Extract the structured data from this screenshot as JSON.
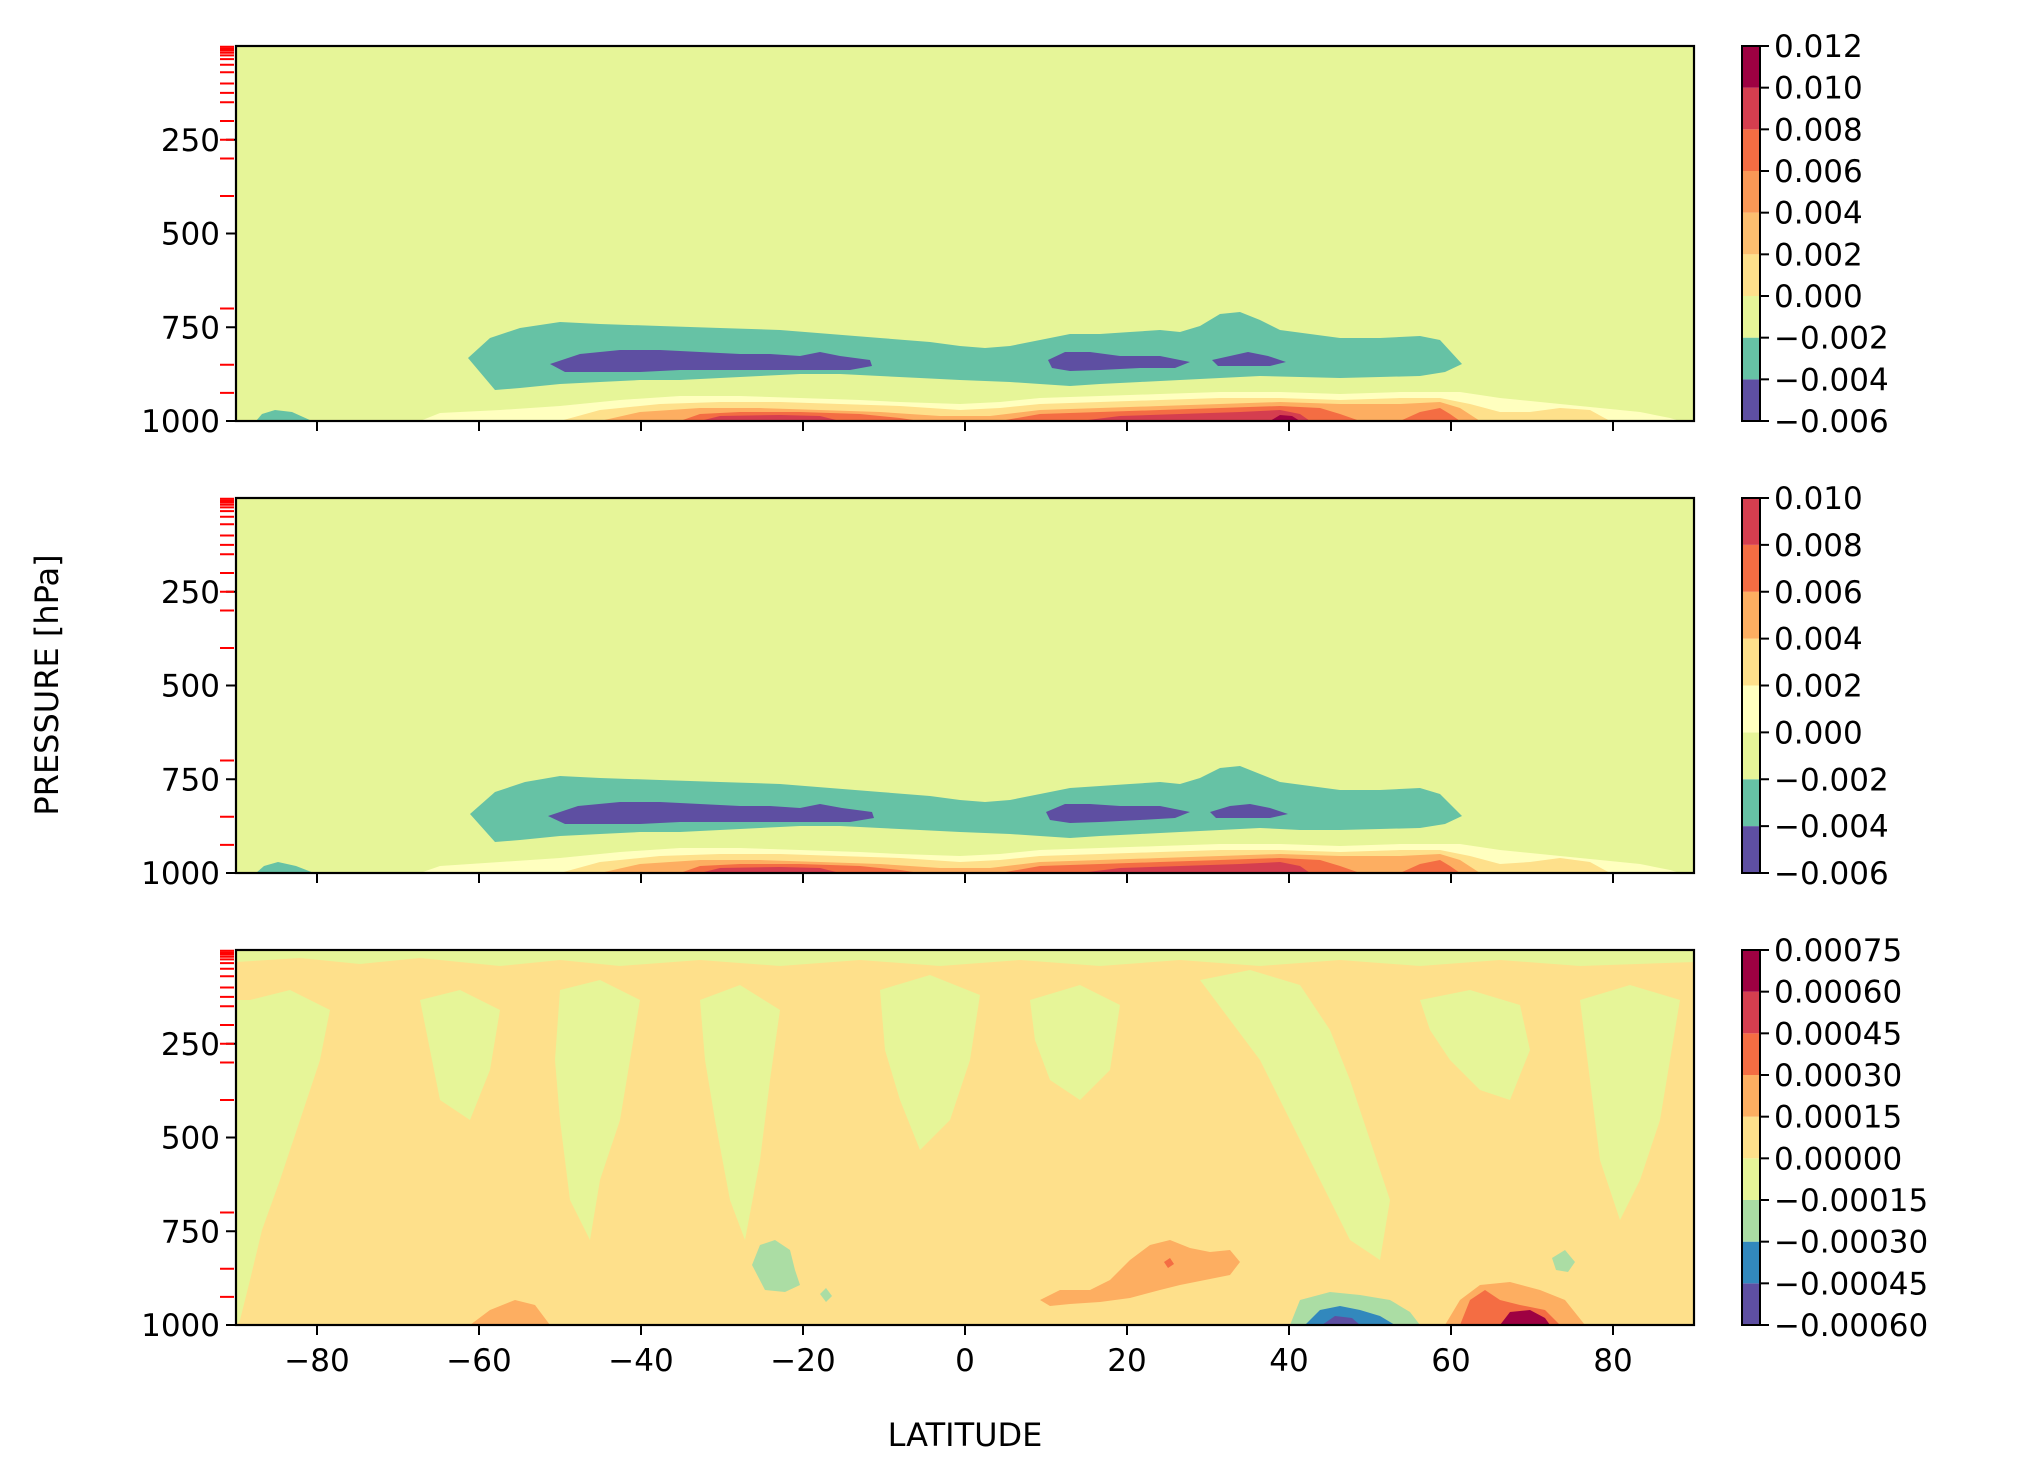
{
  "figure": {
    "ylabel": "PRESSURE [hPa]",
    "xlabel": "LATITUDE",
    "colors": {
      "spectral": [
        "#5e4fa2",
        "#3288bd",
        "#66c2a5",
        "#abdda4",
        "#e6f598",
        "#ffffbf",
        "#fee08b",
        "#fdae61",
        "#f46d43",
        "#d53e4f",
        "#9e0142"
      ],
      "pressure_level_mark": "#ff0000"
    }
  },
  "chart_data": [
    {
      "type": "contourf",
      "name": "top",
      "xlim": [
        -90,
        90
      ],
      "ylim": [
        1000,
        0
      ],
      "x_ticks": [
        -80,
        -60,
        -40,
        -20,
        0,
        20,
        40,
        60,
        80
      ],
      "x_tick_labels": [
        "",
        "",
        "",
        "",
        "",
        "",
        "",
        "",
        ""
      ],
      "y_ticks": [
        250,
        500,
        750,
        1000
      ],
      "y_tick_labels": [
        "250",
        "500",
        "750",
        "1000"
      ],
      "pressure_levels": [
        2,
        7,
        12,
        18,
        25,
        35,
        50,
        70,
        100,
        125,
        150,
        200,
        250,
        300,
        400,
        700,
        850,
        925
      ],
      "background_band": "-0.002 to 0.000",
      "colorbar": {
        "levels": [
          -0.006,
          -0.004,
          -0.002,
          0.0,
          0.002,
          0.004,
          0.006,
          0.008,
          0.01,
          0.012
        ],
        "tick_labels": [
          "0.012",
          "0.010",
          "0.008",
          "0.006",
          "0.004",
          "0.002",
          "0.000",
          "−0.002",
          "−0.004",
          "−0.006"
        ],
        "band_colors": [
          "#5e4fa2",
          "#66c2a5",
          "#e6f598",
          "#fee08b",
          "#fdbe6f",
          "#fa9856",
          "#f46d43",
          "#d53e4f",
          "#9e0142"
        ]
      }
    },
    {
      "type": "contourf",
      "name": "middle",
      "xlim": [
        -90,
        90
      ],
      "ylim": [
        1000,
        0
      ],
      "x_ticks": [
        -80,
        -60,
        -40,
        -20,
        0,
        20,
        40,
        60,
        80
      ],
      "x_tick_labels": [
        "",
        "",
        "",
        "",
        "",
        "",
        "",
        "",
        ""
      ],
      "y_ticks": [
        250,
        500,
        750,
        1000
      ],
      "y_tick_labels": [
        "250",
        "500",
        "750",
        "1000"
      ],
      "pressure_levels": [
        2,
        7,
        12,
        18,
        25,
        35,
        50,
        70,
        100,
        125,
        150,
        200,
        250,
        300,
        400,
        700,
        850,
        925
      ],
      "background_band": "-0.002 to 0.000",
      "colorbar": {
        "levels": [
          -0.006,
          -0.004,
          -0.002,
          0.0,
          0.002,
          0.004,
          0.006,
          0.008,
          0.01
        ],
        "tick_labels": [
          "0.010",
          "0.008",
          "0.006",
          "0.004",
          "0.002",
          "0.000",
          "−0.002",
          "−0.004",
          "−0.006"
        ],
        "band_colors": [
          "#5e4fa2",
          "#66c2a5",
          "#e6f598",
          "#ffffbf",
          "#fee08b",
          "#fdae61",
          "#f46d43",
          "#d53e4f"
        ]
      }
    },
    {
      "type": "contourf",
      "name": "bottom",
      "xlim": [
        -90,
        90
      ],
      "ylim": [
        1000,
        0
      ],
      "x_ticks": [
        -80,
        -60,
        -40,
        -20,
        0,
        20,
        40,
        60,
        80
      ],
      "x_tick_labels": [
        "−80",
        "−60",
        "−40",
        "−20",
        "0",
        "20",
        "40",
        "60",
        "80"
      ],
      "y_ticks": [
        250,
        500,
        750,
        1000
      ],
      "y_tick_labels": [
        "250",
        "500",
        "750",
        "1000"
      ],
      "pressure_levels": [
        2,
        7,
        12,
        18,
        25,
        35,
        50,
        70,
        100,
        125,
        150,
        200,
        250,
        300,
        400,
        700,
        850,
        925
      ],
      "background_band": "0.00000 to 0.00015",
      "colorbar": {
        "levels": [
          -0.0006,
          -0.00045,
          -0.0003,
          -0.00015,
          0.0,
          0.00015,
          0.0003,
          0.00045,
          0.0006,
          0.00075
        ],
        "tick_labels": [
          "0.00075",
          "0.00060",
          "0.00045",
          "0.00030",
          "0.00015",
          "0.00000",
          "−0.00015",
          "−0.00030",
          "−0.00045",
          "−0.00060"
        ],
        "band_colors": [
          "#5e4fa2",
          "#3288bd",
          "#abdda4",
          "#e6f598",
          "#fee08b",
          "#fdae61",
          "#f46d43",
          "#d53e4f",
          "#9e0142"
        ]
      }
    }
  ]
}
